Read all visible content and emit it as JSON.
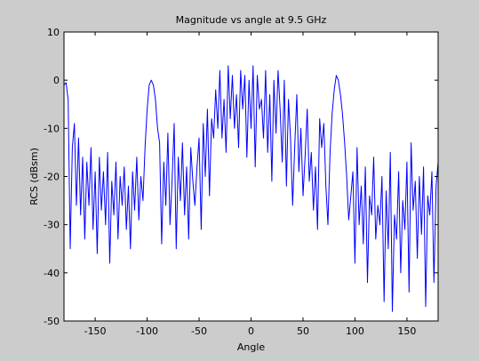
{
  "chart_data": {
    "type": "line",
    "title": "Magnitude vs angle at 9.5 GHz",
    "xlabel": "Angle",
    "ylabel": "RCS (dBsm)",
    "xlim": [
      -180,
      180
    ],
    "ylim": [
      -50,
      10
    ],
    "xticks": [
      -150,
      -100,
      -50,
      0,
      50,
      100,
      150
    ],
    "yticks": [
      10,
      0,
      -10,
      -20,
      -30,
      -40,
      -50
    ],
    "xtick_labels": [
      "-150",
      "-100",
      "-50",
      "0",
      "50",
      "100",
      "150"
    ],
    "ytick_labels": [
      "10",
      "0",
      "-10",
      "-20",
      "-30",
      "-40",
      "-50"
    ],
    "grid": false,
    "series": [
      {
        "color": "#0000ff",
        "x": [
          -180,
          -178,
          -176,
          -174,
          -172,
          -170,
          -168,
          -166,
          -164,
          -162,
          -160,
          -158,
          -156,
          -154,
          -152,
          -150,
          -148,
          -146,
          -144,
          -142,
          -140,
          -138,
          -136,
          -134,
          -132,
          -130,
          -128,
          -126,
          -124,
          -122,
          -120,
          -118,
          -116,
          -114,
          -112,
          -110,
          -108,
          -106,
          -104,
          -102,
          -100,
          -98,
          -96,
          -94,
          -92,
          -90,
          -88,
          -86,
          -84,
          -82,
          -80,
          -78,
          -76,
          -74,
          -72,
          -70,
          -68,
          -66,
          -64,
          -62,
          -60,
          -58,
          -56,
          -54,
          -52,
          -50,
          -48,
          -46,
          -44,
          -42,
          -40,
          -38,
          -36,
          -34,
          -32,
          -30,
          -28,
          -26,
          -24,
          -22,
          -20,
          -18,
          -16,
          -14,
          -12,
          -10,
          -8,
          -6,
          -4,
          -2,
          0,
          2,
          4,
          6,
          8,
          10,
          12,
          14,
          16,
          18,
          20,
          22,
          24,
          26,
          28,
          30,
          32,
          34,
          36,
          38,
          40,
          42,
          44,
          46,
          48,
          50,
          52,
          54,
          56,
          58,
          60,
          62,
          64,
          66,
          68,
          70,
          72,
          74,
          76,
          78,
          80,
          82,
          84,
          86,
          88,
          90,
          92,
          94,
          96,
          98,
          100,
          102,
          104,
          106,
          108,
          110,
          112,
          114,
          116,
          118,
          120,
          122,
          124,
          126,
          128,
          130,
          132,
          134,
          136,
          138,
          140,
          142,
          144,
          146,
          148,
          150,
          152,
          154,
          156,
          158,
          160,
          162,
          164,
          166,
          168,
          170,
          172,
          174,
          176,
          178,
          180
        ],
        "y": [
          -1,
          -0.5,
          -4,
          -35,
          -14,
          -9,
          -26,
          -12,
          -28,
          -16,
          -33,
          -17,
          -26,
          -14,
          -31,
          -19,
          -36,
          -16,
          -27,
          -19,
          -30,
          -15,
          -38,
          -21,
          -28,
          -17,
          -33,
          -20,
          -26,
          -18,
          -31,
          -22,
          -35,
          -19,
          -27,
          -16,
          -29,
          -20,
          -25,
          -14,
          -6,
          -1,
          0,
          -1,
          -4,
          -10,
          -13,
          -34,
          -17,
          -26,
          -11,
          -30,
          -21,
          -9,
          -35,
          -16,
          -25,
          -13,
          -28,
          -18,
          -33,
          -14,
          -21,
          -26,
          -18,
          -12,
          -31,
          -9,
          -20,
          -6,
          -24,
          -8,
          -12,
          -2,
          -10,
          2,
          -12,
          -4,
          -15,
          3,
          -8,
          1,
          -10,
          -3,
          -14,
          2,
          -6,
          1,
          -16,
          0,
          -10,
          3,
          -18,
          1,
          -6,
          -4,
          -12,
          2,
          -15,
          -3,
          -21,
          0,
          -11,
          2,
          -6,
          -17,
          0,
          -22,
          -4,
          -12,
          -26,
          -14,
          -3,
          -19,
          -10,
          -24,
          -16,
          -6,
          -21,
          -15,
          -27,
          -18,
          -31,
          -8,
          -14,
          -9,
          -22,
          -30,
          -15,
          -7,
          -2,
          1,
          0,
          -3,
          -7,
          -13,
          -20,
          -29,
          -24,
          -19,
          -38,
          -14,
          -30,
          -22,
          -34,
          -18,
          -42,
          -24,
          -28,
          -16,
          -33,
          -26,
          -30,
          -20,
          -46,
          -23,
          -35,
          -15,
          -48,
          -28,
          -33,
          -19,
          -40,
          -25,
          -31,
          -17,
          -44,
          -13,
          -27,
          -21,
          -37,
          -20,
          -32,
          -18,
          -47,
          -24,
          -28,
          -19,
          -42,
          -22,
          -17
        ]
      }
    ]
  }
}
